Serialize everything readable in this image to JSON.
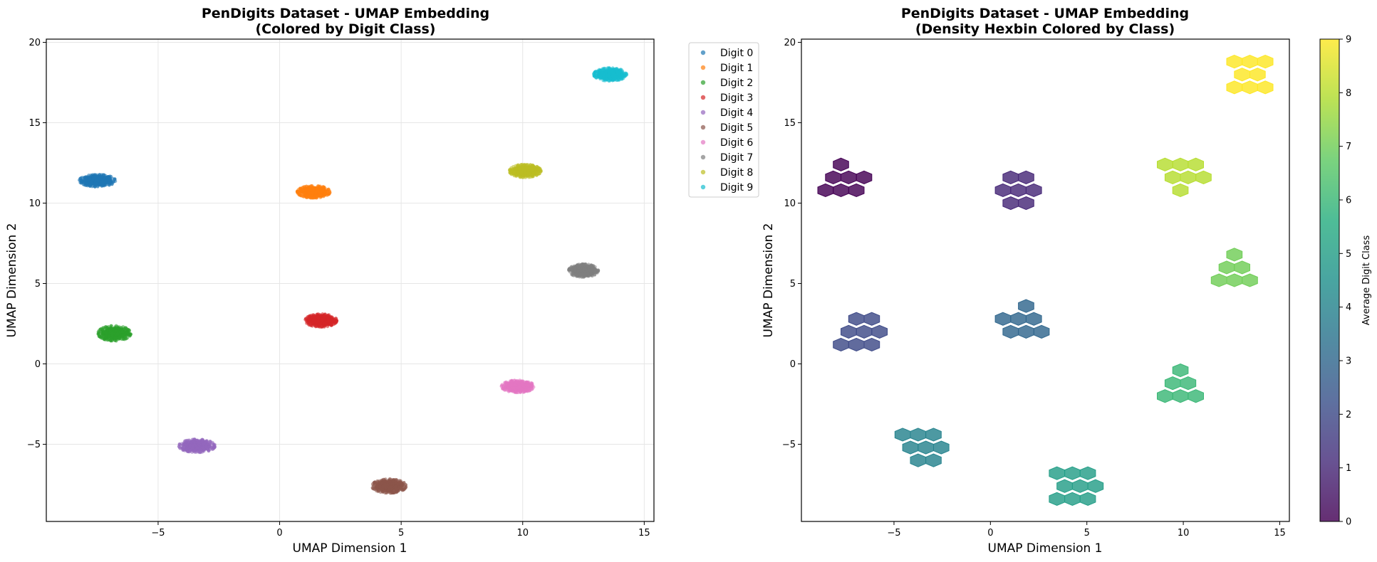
{
  "chart_data": [
    {
      "type": "scatter",
      "title": [
        "PenDigits Dataset - UMAP Embedding",
        "(Colored by Digit Class)"
      ],
      "xlabel": "UMAP Dimension 1",
      "ylabel": "UMAP Dimension 2",
      "xlim": [
        -9.6,
        15.4
      ],
      "ylim": [
        -9.8,
        20.2
      ],
      "xticks": [
        -5,
        0,
        5,
        10,
        15
      ],
      "yticks": [
        -5,
        0,
        5,
        10,
        15,
        20
      ],
      "xtick_labels": [
        "−5",
        "0",
        "5",
        "10",
        "15"
      ],
      "ytick_labels": [
        "−5",
        "0",
        "5",
        "10",
        "15",
        "20"
      ],
      "grid": true,
      "legend_position": "outside-right",
      "series": [
        {
          "name": "Digit 0",
          "color": "#1f77b4",
          "center": [
            -7.5,
            11.4
          ],
          "spread": [
            0.55,
            0.28
          ]
        },
        {
          "name": "Digit 1",
          "color": "#ff7f0e",
          "center": [
            1.4,
            10.7
          ],
          "spread": [
            0.5,
            0.28
          ]
        },
        {
          "name": "Digit 2",
          "color": "#2ca02c",
          "center": [
            -6.8,
            1.9
          ],
          "spread": [
            0.5,
            0.35
          ]
        },
        {
          "name": "Digit 3",
          "color": "#d62728",
          "center": [
            1.7,
            2.7
          ],
          "spread": [
            0.48,
            0.3
          ]
        },
        {
          "name": "Digit 4",
          "color": "#9467bd",
          "center": [
            -3.4,
            -5.1
          ],
          "spread": [
            0.55,
            0.3
          ]
        },
        {
          "name": "Digit 5",
          "color": "#8c564b",
          "center": [
            4.5,
            -7.6
          ],
          "spread": [
            0.52,
            0.32
          ]
        },
        {
          "name": "Digit 6",
          "color": "#e377c2",
          "center": [
            9.8,
            -1.4
          ],
          "spread": [
            0.5,
            0.28
          ]
        },
        {
          "name": "Digit 7",
          "color": "#7f7f7f",
          "center": [
            12.5,
            5.8
          ],
          "spread": [
            0.45,
            0.3
          ]
        },
        {
          "name": "Digit 8",
          "color": "#bcbd22",
          "center": [
            10.1,
            12.0
          ],
          "spread": [
            0.48,
            0.3
          ]
        },
        {
          "name": "Digit 9",
          "color": "#17becf",
          "center": [
            13.6,
            18.0
          ],
          "spread": [
            0.5,
            0.3
          ]
        }
      ]
    },
    {
      "type": "heatmap",
      "subtype": "hexbin",
      "title": [
        "PenDigits Dataset - UMAP Embedding",
        "(Density Hexbin Colored by Class)"
      ],
      "xlabel": "UMAP Dimension 1",
      "ylabel": "UMAP Dimension 2",
      "xlim": [
        -9.8,
        15.5
      ],
      "ylim": [
        -9.8,
        20.2
      ],
      "xticks": [
        -5,
        0,
        5,
        10,
        15
      ],
      "yticks": [
        -5,
        0,
        5,
        10,
        15,
        20
      ],
      "xtick_labels": [
        "−5",
        "0",
        "5",
        "10",
        "15"
      ],
      "ytick_labels": [
        "−5",
        "0",
        "5",
        "10",
        "15",
        "20"
      ],
      "grid": false,
      "colorbar": {
        "label": "Average Digit Class",
        "range": [
          0,
          9
        ],
        "ticks": [
          0,
          1,
          2,
          3,
          4,
          5,
          6,
          7,
          8,
          9
        ],
        "colormap": "viridis",
        "colormap_stops": [
          "#440154",
          "#472d7b",
          "#3b528b",
          "#2c728e",
          "#21918c",
          "#28ae80",
          "#5ec962",
          "#addc30",
          "#fde725"
        ]
      },
      "hex_size": [
        0.4,
        0.4
      ],
      "hexes": [
        {
          "x": -7.75,
          "y": 12.4,
          "v": 0
        },
        {
          "x": -8.15,
          "y": 11.6,
          "v": 0
        },
        {
          "x": -7.35,
          "y": 11.6,
          "v": 0
        },
        {
          "x": -6.55,
          "y": 11.6,
          "v": 0
        },
        {
          "x": -8.55,
          "y": 10.8,
          "v": 0
        },
        {
          "x": -7.75,
          "y": 10.8,
          "v": 0
        },
        {
          "x": -6.95,
          "y": 10.8,
          "v": 0
        },
        {
          "x": 1.05,
          "y": 11.6,
          "v": 1
        },
        {
          "x": 1.85,
          "y": 11.6,
          "v": 1
        },
        {
          "x": 0.65,
          "y": 10.8,
          "v": 1
        },
        {
          "x": 1.45,
          "y": 10.8,
          "v": 1
        },
        {
          "x": 2.25,
          "y": 10.8,
          "v": 1
        },
        {
          "x": 1.05,
          "y": 10.0,
          "v": 1
        },
        {
          "x": 1.85,
          "y": 10.0,
          "v": 1
        },
        {
          "x": -6.95,
          "y": 2.8,
          "v": 2
        },
        {
          "x": -6.15,
          "y": 2.8,
          "v": 2
        },
        {
          "x": -7.35,
          "y": 2.0,
          "v": 2
        },
        {
          "x": -6.55,
          "y": 2.0,
          "v": 2
        },
        {
          "x": -5.75,
          "y": 2.0,
          "v": 2
        },
        {
          "x": -7.75,
          "y": 1.2,
          "v": 2
        },
        {
          "x": -6.95,
          "y": 1.2,
          "v": 2
        },
        {
          "x": -6.15,
          "y": 1.2,
          "v": 2
        },
        {
          "x": 1.85,
          "y": 3.6,
          "v": 3
        },
        {
          "x": 0.65,
          "y": 2.8,
          "v": 3
        },
        {
          "x": 1.45,
          "y": 2.8,
          "v": 3
        },
        {
          "x": 2.25,
          "y": 2.8,
          "v": 3
        },
        {
          "x": 1.05,
          "y": 2.0,
          "v": 3
        },
        {
          "x": 1.85,
          "y": 2.0,
          "v": 3
        },
        {
          "x": 2.65,
          "y": 2.0,
          "v": 3
        },
        {
          "x": -4.55,
          "y": -4.4,
          "v": 4
        },
        {
          "x": -3.75,
          "y": -4.4,
          "v": 4
        },
        {
          "x": -2.95,
          "y": -4.4,
          "v": 4
        },
        {
          "x": -4.15,
          "y": -5.2,
          "v": 4
        },
        {
          "x": -3.35,
          "y": -5.2,
          "v": 4
        },
        {
          "x": -2.55,
          "y": -5.2,
          "v": 4
        },
        {
          "x": -3.75,
          "y": -6.0,
          "v": 4
        },
        {
          "x": -2.95,
          "y": -6.0,
          "v": 4
        },
        {
          "x": 3.45,
          "y": -6.8,
          "v": 5
        },
        {
          "x": 4.25,
          "y": -6.8,
          "v": 5
        },
        {
          "x": 5.05,
          "y": -6.8,
          "v": 5
        },
        {
          "x": 3.85,
          "y": -7.6,
          "v": 5
        },
        {
          "x": 4.65,
          "y": -7.6,
          "v": 5
        },
        {
          "x": 5.45,
          "y": -7.6,
          "v": 5
        },
        {
          "x": 3.45,
          "y": -8.4,
          "v": 5
        },
        {
          "x": 4.25,
          "y": -8.4,
          "v": 5
        },
        {
          "x": 5.05,
          "y": -8.4,
          "v": 5
        },
        {
          "x": 9.85,
          "y": -0.4,
          "v": 6
        },
        {
          "x": 9.45,
          "y": -1.2,
          "v": 6
        },
        {
          "x": 10.25,
          "y": -1.2,
          "v": 6
        },
        {
          "x": 9.05,
          "y": -2.0,
          "v": 6
        },
        {
          "x": 9.85,
          "y": -2.0,
          "v": 6
        },
        {
          "x": 10.65,
          "y": -2.0,
          "v": 6
        },
        {
          "x": 12.65,
          "y": 6.8,
          "v": 7
        },
        {
          "x": 12.25,
          "y": 6.0,
          "v": 7
        },
        {
          "x": 13.05,
          "y": 6.0,
          "v": 7
        },
        {
          "x": 11.85,
          "y": 5.2,
          "v": 7
        },
        {
          "x": 12.65,
          "y": 5.2,
          "v": 7
        },
        {
          "x": 13.45,
          "y": 5.2,
          "v": 7
        },
        {
          "x": 9.05,
          "y": 12.4,
          "v": 8
        },
        {
          "x": 9.85,
          "y": 12.4,
          "v": 8
        },
        {
          "x": 10.65,
          "y": 12.4,
          "v": 8
        },
        {
          "x": 9.45,
          "y": 11.6,
          "v": 8
        },
        {
          "x": 10.25,
          "y": 11.6,
          "v": 8
        },
        {
          "x": 11.05,
          "y": 11.6,
          "v": 8
        },
        {
          "x": 9.85,
          "y": 10.8,
          "v": 8
        },
        {
          "x": 12.65,
          "y": 18.8,
          "v": 9
        },
        {
          "x": 13.45,
          "y": 18.8,
          "v": 9
        },
        {
          "x": 14.25,
          "y": 18.8,
          "v": 9
        },
        {
          "x": 13.05,
          "y": 18.0,
          "v": 9
        },
        {
          "x": 13.85,
          "y": 18.0,
          "v": 9
        },
        {
          "x": 12.65,
          "y": 17.2,
          "v": 9
        },
        {
          "x": 13.45,
          "y": 17.2,
          "v": 9
        },
        {
          "x": 14.25,
          "y": 17.2,
          "v": 9
        }
      ]
    }
  ]
}
